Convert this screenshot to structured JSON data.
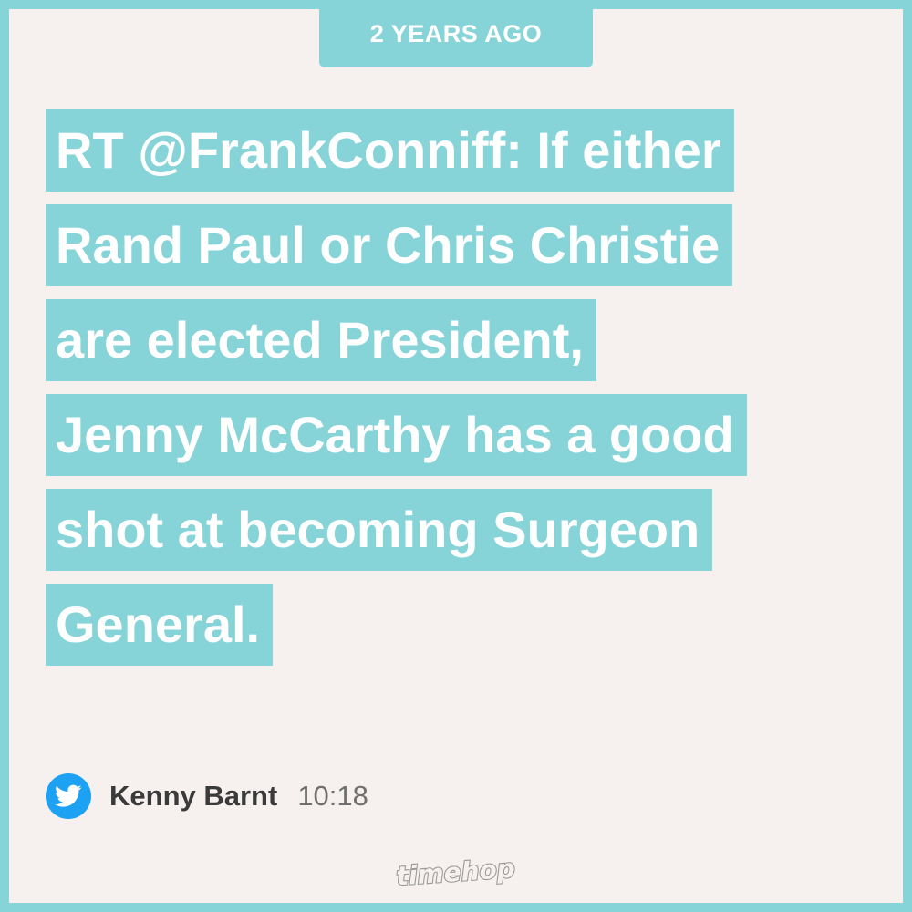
{
  "badge": {
    "label": "2 YEARS AGO"
  },
  "tweet": {
    "lines": [
      "RT @FrankConniff: If either",
      "Rand Paul or Chris Christie",
      "are elected President,",
      "Jenny McCarthy has a good",
      "shot at becoming Surgeon",
      "General."
    ]
  },
  "footer": {
    "source_icon": "twitter-bird-icon",
    "author": "Kenny Barnt",
    "time": "10:18"
  },
  "branding": {
    "logo_text": "timehop"
  },
  "colors": {
    "accent": "#86d4d8",
    "background": "#f6f0ee",
    "twitter_blue": "#1da1f2",
    "text_white": "#ffffff"
  }
}
